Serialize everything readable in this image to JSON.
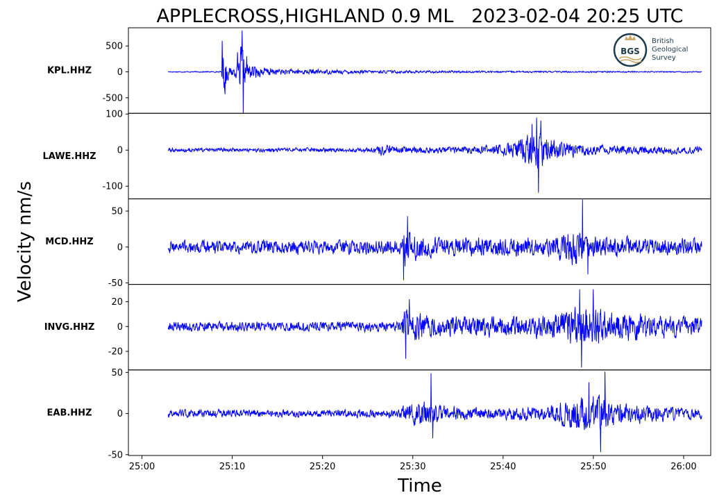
{
  "chart_data": {
    "type": "line",
    "title": "APPLECROSS,HIGHLAND 0.9 ML   2023-02-04 20:25 UTC",
    "xlabel": "Time",
    "ylabel": "Velocity nm/s",
    "xlim": [
      -1.5,
      63
    ],
    "x_ticks": [
      {
        "value": 0,
        "label": "25:00"
      },
      {
        "value": 10,
        "label": "25:10"
      },
      {
        "value": 20,
        "label": "25:20"
      },
      {
        "value": 30,
        "label": "25:30"
      },
      {
        "value": 40,
        "label": "25:40"
      },
      {
        "value": 50,
        "label": "25:50"
      },
      {
        "value": 60,
        "label": "26:00"
      }
    ],
    "line_color": "#0000ff",
    "logo": {
      "name": "BGS",
      "lines": [
        "British",
        "Geological",
        "Survey"
      ]
    },
    "panels": [
      {
        "station": "KPL.HHZ",
        "ylim": [
          -800,
          850
        ],
        "y_ticks": [
          {
            "value": 500,
            "label": "500"
          },
          {
            "value": 0,
            "label": "0"
          },
          {
            "value": -500,
            "label": "-500"
          }
        ],
        "noise": 10,
        "envelope": [
          [
            2.9,
            10
          ],
          [
            3.2,
            12
          ],
          [
            8.8,
            15
          ],
          [
            9,
            560
          ],
          [
            9.3,
            430
          ],
          [
            9.6,
            110
          ],
          [
            10.6,
            160
          ],
          [
            10.8,
            300
          ],
          [
            11.0,
            780
          ],
          [
            11.5,
            230
          ],
          [
            13,
            120
          ],
          [
            16,
            70
          ],
          [
            25,
            40
          ],
          [
            40,
            22
          ],
          [
            62,
            14
          ]
        ],
        "spikes": [
          [
            8.9,
            600
          ],
          [
            9.2,
            -430
          ],
          [
            10.6,
            380
          ],
          [
            10.8,
            -220
          ],
          [
            11.1,
            800
          ],
          [
            11.2,
            -790
          ],
          [
            11.6,
            300
          ]
        ]
      },
      {
        "station": "LAWE.HHZ",
        "ylim": [
          -135,
          102
        ],
        "y_ticks": [
          {
            "value": 100,
            "label": "100"
          },
          {
            "value": 0,
            "label": "0"
          },
          {
            "value": -100,
            "label": "-100"
          }
        ],
        "noise": 7,
        "envelope": [
          [
            2.9,
            7
          ],
          [
            26,
            8
          ],
          [
            26.2,
            20
          ],
          [
            28,
            14
          ],
          [
            32,
            11
          ],
          [
            38,
            15
          ],
          [
            41,
            26
          ],
          [
            42.5,
            50
          ],
          [
            43.5,
            65
          ],
          [
            44.5,
            58
          ],
          [
            46.5,
            30
          ],
          [
            50,
            18
          ],
          [
            62,
            12
          ]
        ],
        "spikes": [
          [
            43.7,
            90
          ],
          [
            43.9,
            -118
          ],
          [
            44.2,
            82
          ],
          [
            43.2,
            72
          ]
        ]
      },
      {
        "station": "MCD.HHZ",
        "ylim": [
          -52,
          67
        ],
        "y_ticks": [
          {
            "value": 50,
            "label": "50"
          },
          {
            "value": 0,
            "label": "0"
          },
          {
            "value": -50,
            "label": "-50"
          }
        ],
        "noise": 11,
        "envelope": [
          [
            2.9,
            12
          ],
          [
            28.8,
            13
          ],
          [
            29.1,
            38
          ],
          [
            30,
            24
          ],
          [
            32,
            17
          ],
          [
            45,
            16
          ],
          [
            48.3,
            35
          ],
          [
            49.5,
            26
          ],
          [
            51,
            17
          ],
          [
            62,
            14
          ]
        ],
        "spikes": [
          [
            29.0,
            -46
          ],
          [
            29.4,
            43
          ],
          [
            48.8,
            66
          ],
          [
            49.4,
            -38
          ]
        ]
      },
      {
        "station": "INVG.HHZ",
        "ylim": [
          -35,
          34
        ],
        "y_ticks": [
          {
            "value": 20,
            "label": "20"
          },
          {
            "value": 0,
            "label": "0"
          },
          {
            "value": -20,
            "label": "-20"
          }
        ],
        "noise": 4,
        "envelope": [
          [
            2.9,
            5
          ],
          [
            28.7,
            5
          ],
          [
            29,
            20
          ],
          [
            30,
            14
          ],
          [
            33,
            10
          ],
          [
            45,
            11
          ],
          [
            48,
            22
          ],
          [
            49.5,
            24
          ],
          [
            52,
            15
          ],
          [
            62,
            9
          ]
        ],
        "spikes": [
          [
            29.2,
            -26
          ],
          [
            29.6,
            22
          ],
          [
            48.5,
            30
          ],
          [
            48.7,
            -33
          ],
          [
            50.0,
            30
          ]
        ]
      },
      {
        "station": "EAB.HHZ",
        "ylim": [
          -51,
          53
        ],
        "y_ticks": [
          {
            "value": 50,
            "label": "50"
          },
          {
            "value": 0,
            "label": "0"
          },
          {
            "value": -50,
            "label": "-50"
          }
        ],
        "noise": 5,
        "envelope": [
          [
            2.9,
            6
          ],
          [
            28.3,
            6
          ],
          [
            29.0,
            12
          ],
          [
            31.0,
            22
          ],
          [
            32.5,
            15
          ],
          [
            36,
            9
          ],
          [
            45,
            11
          ],
          [
            48.8,
            28
          ],
          [
            50.5,
            30
          ],
          [
            53,
            16
          ],
          [
            62,
            8
          ]
        ],
        "spikes": [
          [
            32.0,
            49
          ],
          [
            32.2,
            -30
          ],
          [
            50.8,
            -47
          ],
          [
            51.3,
            51
          ],
          [
            49.5,
            38
          ]
        ]
      }
    ]
  }
}
